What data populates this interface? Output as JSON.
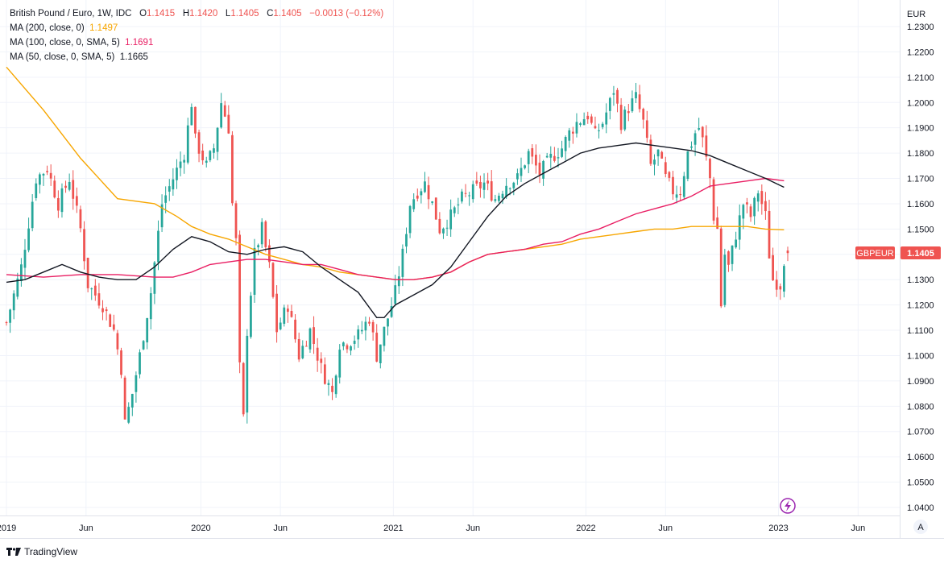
{
  "header": {
    "symbol": "British Pound / Euro, 1W, IDC",
    "ohlc": {
      "o_label": "O",
      "o": "1.1415",
      "h_label": "H",
      "h": "1.1420",
      "l_label": "L",
      "l": "1.1405",
      "c_label": "C",
      "c": "1.1405",
      "change": "−0.0013 (−0.12%)"
    },
    "ma200_label": "MA (200, close, 0)",
    "ma200_value": "1.1497",
    "ma100_label": "MA (100, close, 0, SMA, 5)",
    "ma100_value": "1.1691",
    "ma50_label": "MA (50, close, 0, SMA, 5)",
    "ma50_value": "1.1665"
  },
  "axis": {
    "currency": "EUR",
    "auto_label": "A"
  },
  "price_tag": {
    "symbol": "GBPEUR",
    "value": "1.1405"
  },
  "footer": {
    "brand": "TradingView"
  },
  "colors": {
    "up": "#26a69a",
    "down": "#ef5350",
    "ma200": "#f7a600",
    "ma100": "#e91e63",
    "ma50": "#131722",
    "grid": "#f0f3fa"
  },
  "chart_data": {
    "type": "candlestick",
    "title": "British Pound / Euro, 1W, IDC",
    "ylabel": "EUR",
    "ylim": [
      1.035,
      1.235
    ],
    "ytick_labels": [
      "1.0400",
      "1.0500",
      "1.0600",
      "1.0700",
      "1.0800",
      "1.0900",
      "1.1000",
      "1.1100",
      "1.1200",
      "1.1300",
      "1.1400",
      "1.1500",
      "1.1600",
      "1.1700",
      "1.1800",
      "1.1900",
      "1.2000",
      "1.2100",
      "1.2200",
      "1.2300"
    ],
    "x_labels": [
      {
        "t": 0,
        "label": "2019"
      },
      {
        "t": 21.5,
        "label": "Jun"
      },
      {
        "t": 52.5,
        "label": "2020"
      },
      {
        "t": 74,
        "label": "Jun"
      },
      {
        "t": 104.5,
        "label": "2021"
      },
      {
        "t": 126,
        "label": "Jun"
      },
      {
        "t": 156.5,
        "label": "2022"
      },
      {
        "t": 178,
        "label": "Jun"
      },
      {
        "t": 208.5,
        "label": "2023"
      },
      {
        "t": 230,
        "label": "Jun"
      }
    ],
    "anchors": [
      [
        0,
        1.113
      ],
      [
        4,
        1.135
      ],
      [
        8,
        1.17
      ],
      [
        11,
        1.174
      ],
      [
        14,
        1.16
      ],
      [
        17,
        1.17
      ],
      [
        20,
        1.15
      ],
      [
        22,
        1.128
      ],
      [
        26,
        1.12
      ],
      [
        29,
        1.11
      ],
      [
        31,
        1.095
      ],
      [
        32,
        1.073
      ],
      [
        34,
        1.085
      ],
      [
        36,
        1.1
      ],
      [
        39,
        1.125
      ],
      [
        42,
        1.16
      ],
      [
        45,
        1.17
      ],
      [
        48,
        1.18
      ],
      [
        50,
        1.2
      ],
      [
        51,
        1.185
      ],
      [
        54,
        1.175
      ],
      [
        56,
        1.182
      ],
      [
        58,
        1.2
      ],
      [
        60,
        1.19
      ],
      [
        61,
        1.16
      ],
      [
        62,
        1.145
      ],
      [
        63,
        1.095
      ],
      [
        64,
        1.075
      ],
      [
        65,
        1.11
      ],
      [
        67,
        1.14
      ],
      [
        69,
        1.15
      ],
      [
        71,
        1.135
      ],
      [
        73,
        1.11
      ],
      [
        76,
        1.12
      ],
      [
        79,
        1.1
      ],
      [
        82,
        1.11
      ],
      [
        85,
        1.095
      ],
      [
        88,
        1.085
      ],
      [
        90,
        1.105
      ],
      [
        92,
        1.105
      ],
      [
        95,
        1.108
      ],
      [
        98,
        1.115
      ],
      [
        100,
        1.1
      ],
      [
        103,
        1.115
      ],
      [
        105,
        1.125
      ],
      [
        107,
        1.14
      ],
      [
        109,
        1.16
      ],
      [
        111,
        1.165
      ],
      [
        113,
        1.168
      ],
      [
        115,
        1.16
      ],
      [
        117,
        1.15
      ],
      [
        120,
        1.155
      ],
      [
        123,
        1.162
      ],
      [
        126,
        1.165
      ],
      [
        129,
        1.168
      ],
      [
        132,
        1.162
      ],
      [
        135,
        1.168
      ],
      [
        138,
        1.17
      ],
      [
        141,
        1.18
      ],
      [
        144,
        1.172
      ],
      [
        147,
        1.178
      ],
      [
        150,
        1.182
      ],
      [
        152,
        1.188
      ],
      [
        154,
        1.192
      ],
      [
        157,
        1.195
      ],
      [
        159,
        1.187
      ],
      [
        161,
        1.192
      ],
      [
        163,
        1.2
      ],
      [
        164,
        1.205
      ],
      [
        166,
        1.192
      ],
      [
        168,
        1.198
      ],
      [
        170,
        1.202
      ],
      [
        172,
        1.192
      ],
      [
        174,
        1.175
      ],
      [
        176,
        1.18
      ],
      [
        178,
        1.17
      ],
      [
        180,
        1.165
      ],
      [
        182,
        1.165
      ],
      [
        184,
        1.18
      ],
      [
        186,
        1.188
      ],
      [
        187,
        1.19
      ],
      [
        188,
        1.185
      ],
      [
        190,
        1.17
      ],
      [
        191,
        1.155
      ],
      [
        192,
        1.15
      ],
      [
        193,
        1.12
      ],
      [
        194,
        1.14
      ],
      [
        195,
        1.135
      ],
      [
        197,
        1.148
      ],
      [
        199,
        1.16
      ],
      [
        201,
        1.155
      ],
      [
        203,
        1.165
      ],
      [
        205,
        1.155
      ],
      [
        206,
        1.14
      ],
      [
        207,
        1.13
      ],
      [
        209,
        1.128
      ],
      [
        210,
        1.138
      ],
      [
        211,
        1.1405
      ]
    ],
    "ma200": [
      [
        0,
        1.214
      ],
      [
        10,
        1.197
      ],
      [
        20,
        1.178
      ],
      [
        30,
        1.162
      ],
      [
        40,
        1.16
      ],
      [
        46,
        1.155
      ],
      [
        50,
        1.151
      ],
      [
        55,
        1.148
      ],
      [
        60,
        1.146
      ],
      [
        65,
        1.143
      ],
      [
        70,
        1.14
      ],
      [
        75,
        1.138
      ],
      [
        80,
        1.136
      ],
      [
        85,
        1.135
      ],
      [
        90,
        1.133
      ],
      [
        95,
        1.132
      ],
      [
        100,
        1.131
      ],
      [
        105,
        1.13
      ],
      [
        110,
        1.13
      ],
      [
        115,
        1.131
      ],
      [
        120,
        1.133
      ],
      [
        125,
        1.137
      ],
      [
        130,
        1.14
      ],
      [
        135,
        1.141
      ],
      [
        140,
        1.142
      ],
      [
        145,
        1.143
      ],
      [
        150,
        1.144
      ],
      [
        155,
        1.146
      ],
      [
        160,
        1.147
      ],
      [
        165,
        1.148
      ],
      [
        170,
        1.149
      ],
      [
        175,
        1.15
      ],
      [
        180,
        1.15
      ],
      [
        185,
        1.151
      ],
      [
        190,
        1.151
      ],
      [
        195,
        1.151
      ],
      [
        200,
        1.151
      ],
      [
        205,
        1.15
      ],
      [
        210,
        1.1497
      ]
    ],
    "ma100": [
      [
        0,
        1.132
      ],
      [
        10,
        1.131
      ],
      [
        20,
        1.132
      ],
      [
        30,
        1.132
      ],
      [
        40,
        1.131
      ],
      [
        45,
        1.131
      ],
      [
        50,
        1.133
      ],
      [
        55,
        1.136
      ],
      [
        60,
        1.137
      ],
      [
        65,
        1.138
      ],
      [
        70,
        1.138
      ],
      [
        75,
        1.137
      ],
      [
        80,
        1.136
      ],
      [
        85,
        1.136
      ],
      [
        90,
        1.134
      ],
      [
        95,
        1.132
      ],
      [
        100,
        1.131
      ],
      [
        105,
        1.13
      ],
      [
        110,
        1.13
      ],
      [
        115,
        1.131
      ],
      [
        120,
        1.133
      ],
      [
        125,
        1.137
      ],
      [
        130,
        1.14
      ],
      [
        135,
        1.141
      ],
      [
        140,
        1.142
      ],
      [
        145,
        1.144
      ],
      [
        150,
        1.145
      ],
      [
        155,
        1.148
      ],
      [
        160,
        1.15
      ],
      [
        165,
        1.153
      ],
      [
        170,
        1.156
      ],
      [
        175,
        1.158
      ],
      [
        180,
        1.16
      ],
      [
        185,
        1.163
      ],
      [
        190,
        1.167
      ],
      [
        195,
        1.168
      ],
      [
        200,
        1.169
      ],
      [
        205,
        1.17
      ],
      [
        210,
        1.1691
      ]
    ],
    "ma50": [
      [
        0,
        1.129
      ],
      [
        5,
        1.13
      ],
      [
        10,
        1.133
      ],
      [
        15,
        1.136
      ],
      [
        20,
        1.133
      ],
      [
        25,
        1.131
      ],
      [
        30,
        1.13
      ],
      [
        35,
        1.13
      ],
      [
        40,
        1.135
      ],
      [
        45,
        1.142
      ],
      [
        50,
        1.147
      ],
      [
        55,
        1.145
      ],
      [
        60,
        1.141
      ],
      [
        65,
        1.14
      ],
      [
        70,
        1.142
      ],
      [
        75,
        1.143
      ],
      [
        80,
        1.141
      ],
      [
        85,
        1.135
      ],
      [
        90,
        1.13
      ],
      [
        95,
        1.125
      ],
      [
        100,
        1.115
      ],
      [
        102,
        1.115
      ],
      [
        105,
        1.12
      ],
      [
        110,
        1.124
      ],
      [
        115,
        1.128
      ],
      [
        120,
        1.135
      ],
      [
        125,
        1.145
      ],
      [
        130,
        1.155
      ],
      [
        135,
        1.163
      ],
      [
        140,
        1.168
      ],
      [
        145,
        1.172
      ],
      [
        150,
        1.176
      ],
      [
        155,
        1.18
      ],
      [
        160,
        1.182
      ],
      [
        165,
        1.183
      ],
      [
        170,
        1.184
      ],
      [
        175,
        1.183
      ],
      [
        180,
        1.182
      ],
      [
        185,
        1.181
      ],
      [
        190,
        1.179
      ],
      [
        195,
        1.176
      ],
      [
        200,
        1.173
      ],
      [
        205,
        1.17
      ],
      [
        210,
        1.1665
      ]
    ]
  }
}
